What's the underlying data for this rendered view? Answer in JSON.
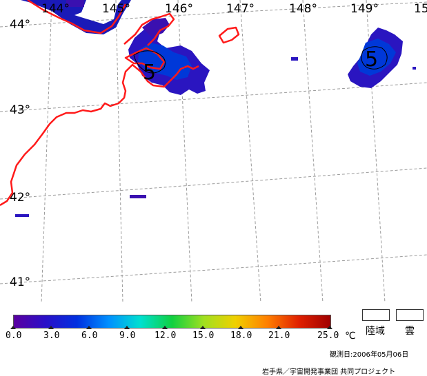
{
  "map": {
    "longitude_labels": [
      "144°",
      "145°",
      "146°",
      "147°",
      "148°",
      "149°",
      "15"
    ],
    "latitude_labels": [
      "44°",
      "43°",
      "42°",
      "41°"
    ],
    "contour_labels": [
      "5",
      "5"
    ],
    "coast_color": "#ff1a1a",
    "grid_color": "#9a9a9a"
  },
  "colorbar": {
    "ticks": [
      "0.0",
      "3.0",
      "6.0",
      "9.0",
      "12.0",
      "15.0",
      "18.0",
      "21.0",
      "25.0"
    ],
    "unit": "℃",
    "colors": [
      "#5a00a0",
      "#2a10c8",
      "#0030e0",
      "#0090ff",
      "#00e0d0",
      "#10d040",
      "#a0e020",
      "#f0d000",
      "#ff8000",
      "#e02000",
      "#a00000"
    ]
  },
  "legend": {
    "land_label": "陸域",
    "cloud_label": "雲"
  },
  "footer": {
    "observation_date": "観測日:2006年05月06日",
    "credit": "岩手県／宇宙開発事業団 共同プロジェクト"
  }
}
